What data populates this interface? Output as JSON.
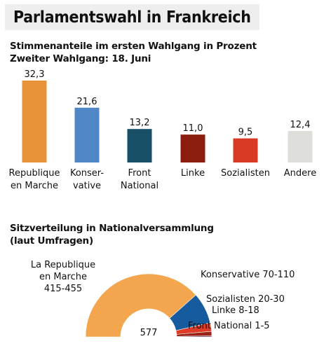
{
  "header": {
    "title": "Parlamentswahl in Frankreich",
    "subtitle_line1": "Stimmenanteile im ersten Wahlgang in Prozent",
    "subtitle_line2": "Zweiter Wahlgang: 18. Juni"
  },
  "seats_title_line1": "Sitzverteilung in Nationalversammlung",
  "seats_title_line2": "(laut Umfragen)",
  "chart_data": [
    {
      "type": "bar",
      "title": "Stimmenanteile im ersten Wahlgang in Prozent",
      "categories": [
        [
          "Republique",
          "en Marche"
        ],
        [
          "Konser-",
          "vative"
        ],
        [
          "Front",
          "National"
        ],
        [
          "Linke"
        ],
        [
          "Sozialisten"
        ],
        [
          "Andere"
        ]
      ],
      "values": [
        32.3,
        21.6,
        13.2,
        11.0,
        9.5,
        12.4
      ],
      "value_labels": [
        "32,3",
        "21,6",
        "13,2",
        "11,0",
        "9,5",
        "12,4"
      ],
      "colors": [
        "#e8923a",
        "#4f86c6",
        "#164f66",
        "#8c1e10",
        "#d93a26",
        "#dededb"
      ],
      "ylim": [
        0,
        32.3
      ]
    },
    {
      "type": "pie",
      "subtype": "semicircle-donut",
      "title": "Sitzverteilung in Nationalversammlung (laut Umfragen)",
      "total_label": "577",
      "slices": [
        {
          "label_lines": [
            "La Republique",
            "en Marche",
            "415-455"
          ],
          "value": 435,
          "color": "#f3a64e"
        },
        {
          "label_lines": [
            "Konservative 70-110"
          ],
          "value": 90,
          "color": "#155b9d"
        },
        {
          "label_lines": [
            "Sozialisten 20-30"
          ],
          "value": 25,
          "color": "#dd3b26"
        },
        {
          "label_lines": [
            "Linke 8-18"
          ],
          "value": 13,
          "color": "#9a2318"
        },
        {
          "label_lines": [
            "Front National 1-5"
          ],
          "value": 3,
          "color": "#6a2c5a"
        }
      ]
    }
  ]
}
